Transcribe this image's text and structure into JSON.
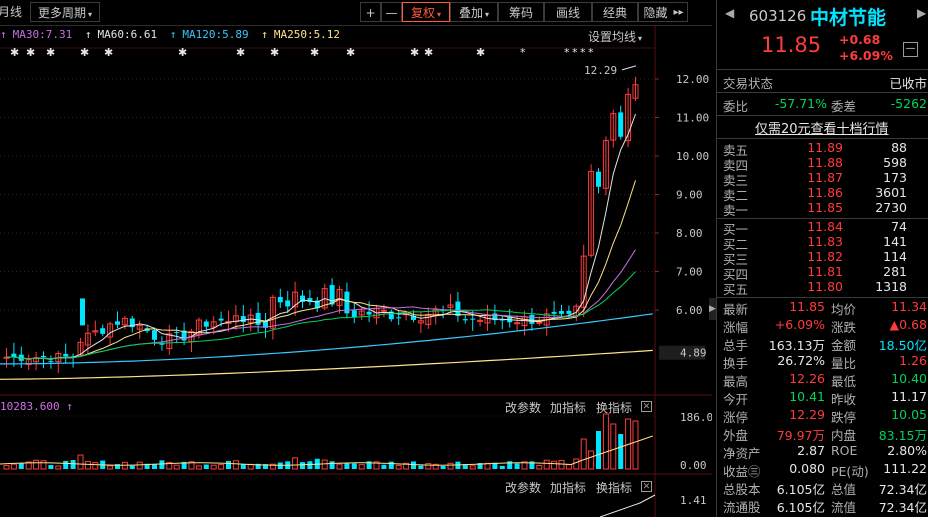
{
  "colors": {
    "up": "#ff3b3b",
    "down": "#00e5ff",
    "green": "#00d25a",
    "accent": "#ff5a3c"
  },
  "toolbar": {
    "items": [
      {
        "label": "月线"
      },
      {
        "label": "更多周期",
        "caret": "▾"
      },
      {
        "label": "+"
      },
      {
        "label": "—"
      },
      {
        "label": "复权",
        "caret": "▾",
        "active": true
      },
      {
        "label": "叠加",
        "caret": "▾"
      },
      {
        "label": "筹码"
      },
      {
        "label": "画线"
      },
      {
        "label": "经典"
      },
      {
        "label": "隐藏"
      },
      {
        "label": "▸▸"
      }
    ]
  },
  "ma_legend": [
    {
      "label": "MA30:7.31",
      "color": "#c86ee6"
    },
    {
      "label": "MA60:6.61",
      "color": "#e6e6e6"
    },
    {
      "label": "MA120:5.89",
      "color": "#36c8ff"
    },
    {
      "label": "MA250:5.12",
      "color": "#ffe28a"
    }
  ],
  "settings_label": "设置均线",
  "price_axis": {
    "ticks": [
      "12.00",
      "11.00",
      "10.00",
      "9.00",
      "8.00",
      "7.00",
      "6.00"
    ],
    "last_label": "4.89",
    "high_annotation": "12.29"
  },
  "volume_panel": {
    "legend": "10283.600",
    "buttons": [
      "改参数",
      "加指标",
      "换指标"
    ],
    "ticks": [
      "186.00",
      "0.00"
    ]
  },
  "third_panel": {
    "buttons": [
      "改参数",
      "加指标",
      "换指标"
    ],
    "tick": "1.41"
  },
  "stock": {
    "code": "603126",
    "name": "中材节能",
    "price": "11.85",
    "change": "+0.68",
    "pct": "+6.09%",
    "minimize": "—"
  },
  "trade_status": {
    "label": "交易状态",
    "value": "已收市"
  },
  "order_ratio": {
    "label": "委比",
    "value": "-57.71%",
    "label2": "委差",
    "value2": "-5262"
  },
  "level2_link": "仅需20元查看十档行情",
  "asks": [
    {
      "label": "卖五",
      "price": "11.89",
      "vol": "88"
    },
    {
      "label": "卖四",
      "price": "11.88",
      "vol": "598"
    },
    {
      "label": "卖三",
      "price": "11.87",
      "vol": "173"
    },
    {
      "label": "卖二",
      "price": "11.86",
      "vol": "3601"
    },
    {
      "label": "卖一",
      "price": "11.85",
      "vol": "2730"
    }
  ],
  "bids": [
    {
      "label": "买一",
      "price": "11.84",
      "vol": "74"
    },
    {
      "label": "买二",
      "price": "11.83",
      "vol": "141"
    },
    {
      "label": "买三",
      "price": "11.82",
      "vol": "114"
    },
    {
      "label": "买四",
      "price": "11.81",
      "vol": "281"
    },
    {
      "label": "买五",
      "price": "11.80",
      "vol": "1318"
    }
  ],
  "quote": [
    {
      "l1": "最新",
      "v1": "11.85",
      "c1": "red",
      "l2": "均价",
      "v2": "11.34",
      "c2": "red"
    },
    {
      "l1": "涨幅",
      "v1": "+6.09%",
      "c1": "red",
      "l2": "涨跌",
      "v2": "▲0.68",
      "c2": "red"
    },
    {
      "l1": "总手",
      "v1": "163.13万",
      "c1": "white",
      "l2": "金额",
      "v2": "18.50亿",
      "c2": "cyan"
    },
    {
      "l1": "换手",
      "v1": "26.72%",
      "c1": "white",
      "l2": "量比",
      "v2": "1.26",
      "c2": "red"
    },
    {
      "l1": "最高",
      "v1": "12.26",
      "c1": "red",
      "l2": "最低",
      "v2": "10.40",
      "c2": "green"
    },
    {
      "l1": "今开",
      "v1": "10.41",
      "c1": "green",
      "l2": "昨收",
      "v2": "11.17",
      "c2": "white"
    },
    {
      "l1": "涨停",
      "v1": "12.29",
      "c1": "red",
      "l2": "跌停",
      "v2": "10.05",
      "c2": "green"
    },
    {
      "l1": "外盘",
      "v1": "79.97万",
      "c1": "red",
      "l2": "内盘",
      "v2": "83.15万",
      "c2": "green"
    },
    {
      "l1": "净资产",
      "v1": "2.87",
      "c1": "white",
      "l2": "ROE",
      "v2": "2.80%",
      "c2": "white"
    },
    {
      "l1": "收益㊂",
      "v1": "0.080",
      "c1": "white",
      "l2": "PE(动)",
      "v2": "111.22",
      "c2": "white"
    },
    {
      "l1": "总股本",
      "v1": "6.105亿",
      "c1": "white",
      "l2": "总值",
      "v2": "72.34亿",
      "c2": "white"
    },
    {
      "l1": "流通股",
      "v1": "6.105亿",
      "c1": "white",
      "l2": "流值",
      "v2": "72.34亿",
      "c2": "white"
    }
  ]
}
